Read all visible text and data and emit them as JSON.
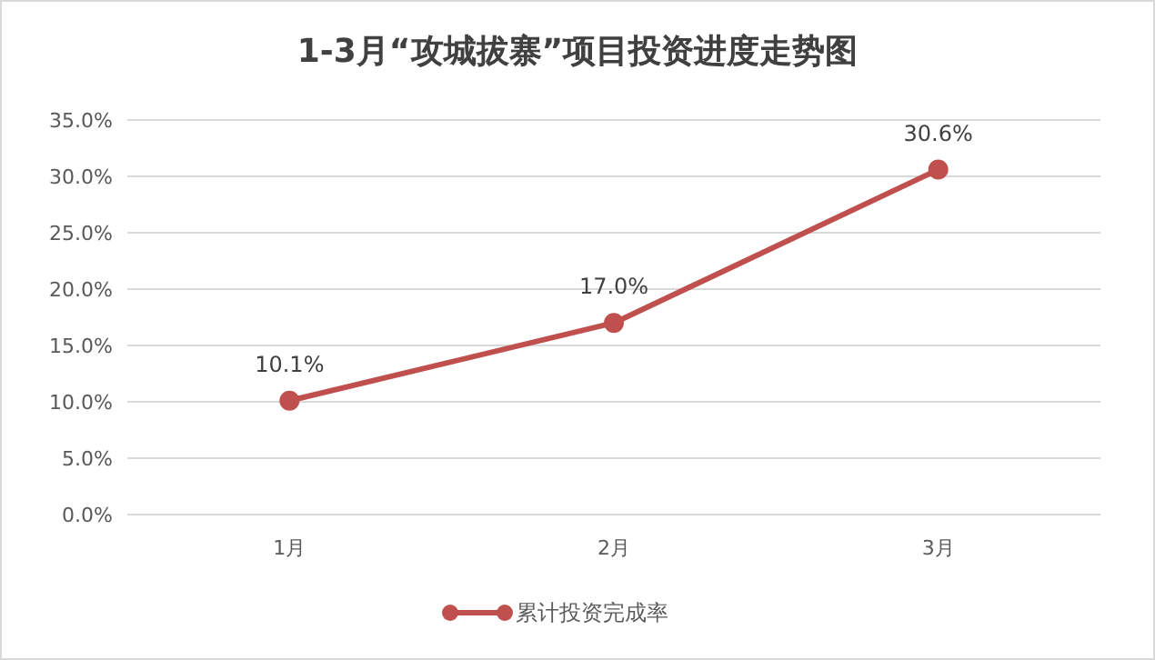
{
  "chart_data": {
    "type": "line",
    "title": "1-3月“攻城拔寨”项目投资进度走势图",
    "categories": [
      "1月",
      "2月",
      "3月"
    ],
    "series": [
      {
        "name": "累计投资完成率",
        "color": "#c0504d",
        "values": [
          10.1,
          17.0,
          30.6
        ],
        "value_labels": [
          "10.1%",
          "17.0%",
          "30.6%"
        ]
      }
    ],
    "ylim": [
      0,
      35
    ],
    "yticks": [
      {
        "value": 0,
        "label": "0.0%"
      },
      {
        "value": 5,
        "label": "5.0%"
      },
      {
        "value": 10,
        "label": "10.0%"
      },
      {
        "value": 15,
        "label": "15.0%"
      },
      {
        "value": 20,
        "label": "20.0%"
      },
      {
        "value": 25,
        "label": "25.0%"
      },
      {
        "value": 30,
        "label": "30.0%"
      },
      {
        "value": 35,
        "label": "35.0%"
      }
    ],
    "grid": "y",
    "legend": "bottom",
    "marker": "circle",
    "line_style": "solid"
  }
}
